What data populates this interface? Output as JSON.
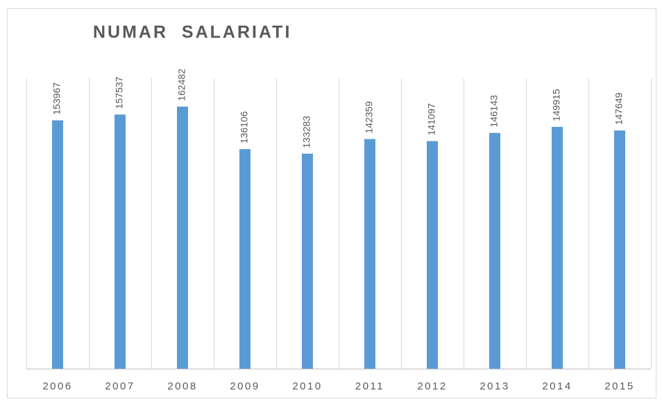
{
  "chart_data": {
    "type": "bar",
    "title": "NUMAR  SALARIATI",
    "categories": [
      "2006",
      "2007",
      "2008",
      "2009",
      "2010",
      "2011",
      "2012",
      "2013",
      "2014",
      "2015"
    ],
    "values": [
      153967,
      157537,
      162482,
      136106,
      133283,
      142359,
      141097,
      146143,
      149915,
      147649
    ],
    "color": "#5b9bd5",
    "ylim": [
      0,
      180000
    ]
  }
}
